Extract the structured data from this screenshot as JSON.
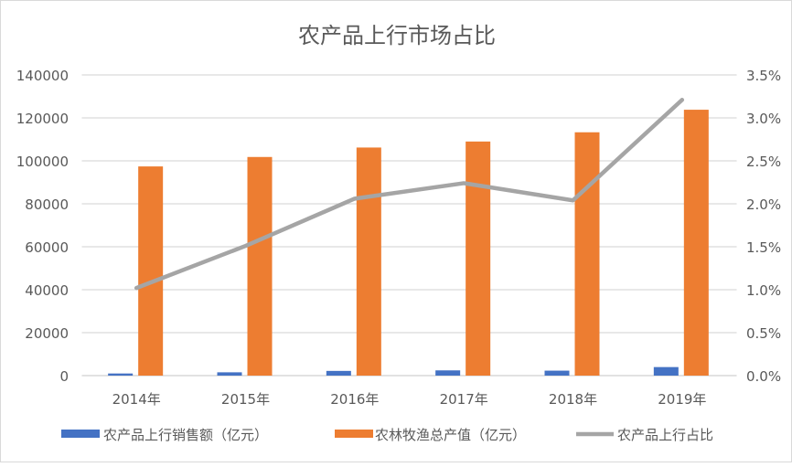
{
  "chart_data": {
    "type": "bar+line",
    "title": "农产品上行市场占比",
    "categories": [
      "2014年",
      "2015年",
      "2016年",
      "2017年",
      "2018年",
      "2019年"
    ],
    "series": [
      {
        "name": "农产品上行销售额（亿元）",
        "type": "bar",
        "axis": "left",
        "color": "#4472C4",
        "values": [
          990,
          1540,
          2190,
          2440,
          2310,
          3975
        ]
      },
      {
        "name": "农林牧渔总产值（亿元）",
        "type": "bar",
        "axis": "left",
        "color": "#ED7D31",
        "values": [
          97400,
          101800,
          106200,
          109000,
          113300,
          123800
        ]
      },
      {
        "name": "农产品上行占比",
        "type": "line",
        "axis": "right",
        "color": "#A5A5A5",
        "values": [
          1.02,
          1.51,
          2.06,
          2.24,
          2.04,
          3.21
        ]
      }
    ],
    "y_left": {
      "range": [
        0,
        140000
      ],
      "ticks": [
        "0",
        "20000",
        "40000",
        "60000",
        "80000",
        "100000",
        "120000",
        "140000"
      ]
    },
    "y_right": {
      "range": [
        0,
        3.5
      ],
      "ticks": [
        "0.0%",
        "0.5%",
        "1.0%",
        "1.5%",
        "2.0%",
        "2.5%",
        "3.0%",
        "3.5%"
      ]
    },
    "grid": true,
    "legend": "bottom"
  }
}
